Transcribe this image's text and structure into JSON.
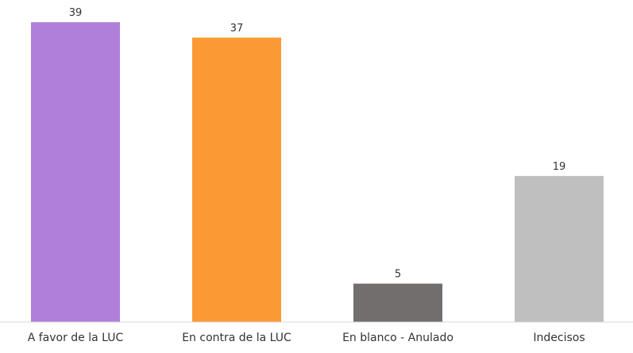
{
  "chart_data": {
    "type": "bar",
    "categories": [
      "A favor de la LUC",
      "En contra de la LUC",
      "En blanco - Anulado",
      "Indecisos"
    ],
    "values": [
      39,
      37,
      5,
      19
    ],
    "colors": [
      "#b07fda",
      "#fb9a33",
      "#716e6d",
      "#bfbfbf"
    ],
    "title": "",
    "xlabel": "",
    "ylabel": "",
    "ylim": [
      0,
      39
    ],
    "grid": false,
    "legend": "none"
  }
}
